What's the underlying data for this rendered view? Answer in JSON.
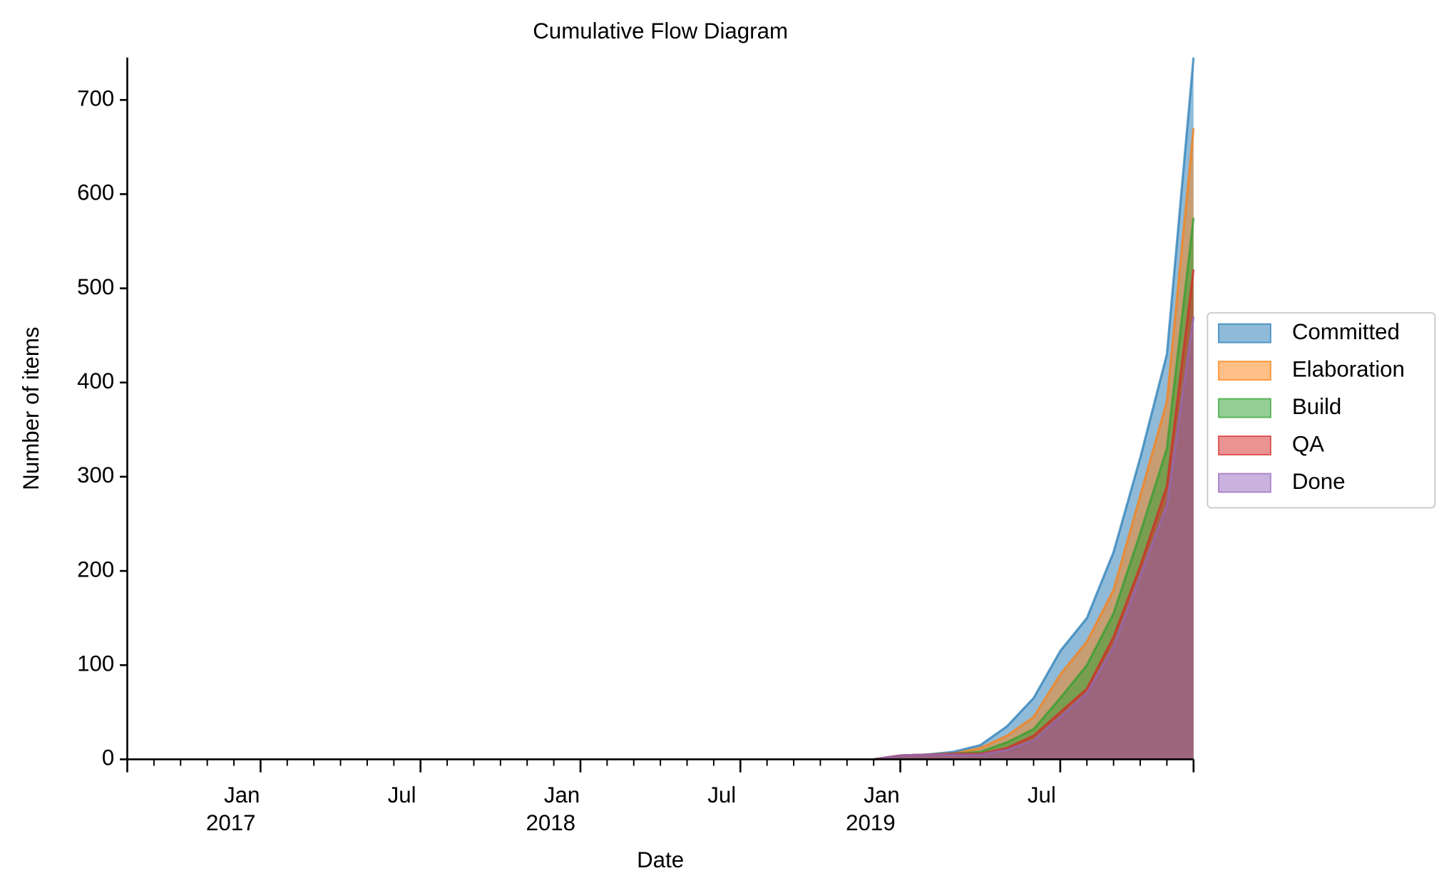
{
  "chart_data": {
    "type": "area",
    "title": "Cumulative Flow Diagram",
    "x_label": "Date",
    "y_label": "Number of items",
    "x": [
      "2018-12",
      "2019-01",
      "2019-02",
      "2019-03",
      "2019-04",
      "2019-05",
      "2019-06",
      "2019-07",
      "2019-08",
      "2019-09",
      "2019-10",
      "2019-11",
      "2019-12"
    ],
    "series": [
      {
        "name": "Committed",
        "color": "#1f77b4",
        "values": [
          0,
          4,
          5,
          8,
          15,
          35,
          65,
          115,
          150,
          220,
          320,
          430,
          745
        ]
      },
      {
        "name": "Elaboration",
        "color": "#ff7f0e",
        "values": [
          0,
          4,
          5,
          6,
          12,
          25,
          45,
          90,
          125,
          180,
          280,
          380,
          670
        ]
      },
      {
        "name": "Build",
        "color": "#2ca02c",
        "values": [
          0,
          4,
          5,
          6,
          8,
          18,
          32,
          65,
          100,
          155,
          240,
          330,
          575
        ]
      },
      {
        "name": "QA",
        "color": "#d62728",
        "values": [
          0,
          4,
          5,
          6,
          6,
          12,
          25,
          50,
          75,
          130,
          205,
          290,
          520
        ]
      },
      {
        "name": "Done",
        "color": "#9467bd",
        "values": [
          0,
          4,
          5,
          5,
          5,
          10,
          20,
          45,
          70,
          120,
          195,
          270,
          470
        ]
      }
    ],
    "xlim": [
      "2016-08",
      "2019-12"
    ],
    "xticks": [
      {
        "value": "2017-01",
        "label": "Jan",
        "year": "2017"
      },
      {
        "value": "2017-07",
        "label": "Jul"
      },
      {
        "value": "2018-01",
        "label": "Jan",
        "year": "2018"
      },
      {
        "value": "2018-07",
        "label": "Jul"
      },
      {
        "value": "2019-01",
        "label": "Jan",
        "year": "2019"
      },
      {
        "value": "2019-07",
        "label": "Jul"
      }
    ],
    "ylim": [
      0,
      745
    ],
    "yticks": [
      0,
      100,
      200,
      300,
      400,
      500,
      600,
      700
    ],
    "legend": "right"
  }
}
